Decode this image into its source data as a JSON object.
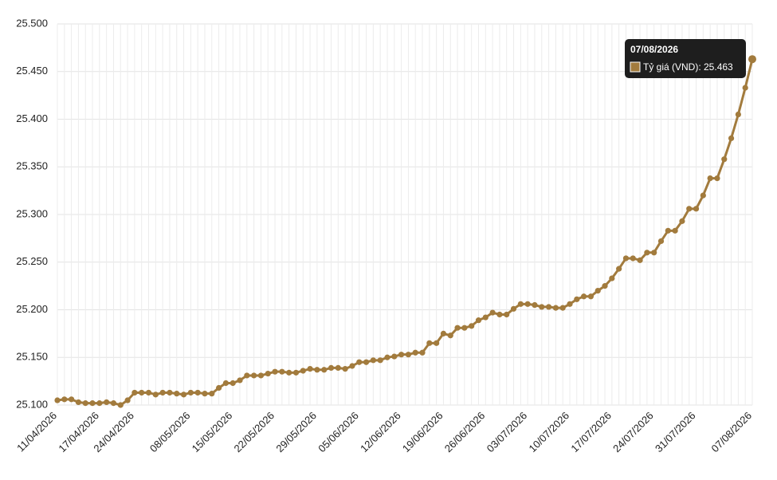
{
  "chart_data": {
    "type": "line",
    "categories": [
      "11/04/2026",
      null,
      null,
      null,
      null,
      null,
      "17/04/2026",
      null,
      null,
      null,
      null,
      "24/04/2026",
      null,
      null,
      null,
      null,
      null,
      null,
      null,
      "08/05/2026",
      null,
      null,
      null,
      null,
      null,
      "15/05/2026",
      null,
      null,
      null,
      null,
      null,
      "22/05/2026",
      null,
      null,
      null,
      null,
      null,
      "29/05/2026",
      null,
      null,
      null,
      null,
      null,
      "05/06/2026",
      null,
      null,
      null,
      null,
      null,
      "12/06/2026",
      null,
      null,
      null,
      null,
      null,
      "19/06/2026",
      null,
      null,
      null,
      null,
      null,
      "26/06/2026",
      null,
      null,
      null,
      null,
      null,
      "03/07/2026",
      null,
      null,
      null,
      null,
      null,
      "10/07/2026",
      null,
      null,
      null,
      null,
      null,
      "17/07/2026",
      null,
      null,
      null,
      null,
      null,
      "24/07/2026",
      null,
      null,
      null,
      null,
      null,
      "31/07/2026",
      null,
      null,
      null,
      null,
      null,
      null,
      null,
      "07/08/2026"
    ],
    "series": [
      {
        "name": "Tỷ giá (VND)",
        "color": "#a27b3d",
        "values": [
          25.105,
          25.106,
          25.106,
          25.103,
          25.102,
          25.102,
          25.102,
          25.103,
          25.102,
          25.1,
          25.105,
          25.113,
          25.113,
          25.113,
          25.111,
          25.113,
          25.113,
          25.112,
          25.111,
          25.113,
          25.113,
          25.112,
          25.112,
          25.118,
          25.123,
          25.123,
          25.126,
          25.131,
          25.131,
          25.131,
          25.133,
          25.135,
          25.135,
          25.134,
          25.134,
          25.136,
          25.138,
          25.137,
          25.137,
          25.139,
          25.139,
          25.138,
          25.141,
          25.145,
          25.145,
          25.147,
          25.147,
          25.15,
          25.151,
          25.153,
          25.153,
          25.155,
          25.155,
          25.165,
          25.165,
          25.175,
          25.173,
          25.181,
          25.181,
          25.183,
          25.189,
          25.192,
          25.197,
          25.195,
          25.195,
          25.201,
          25.206,
          25.206,
          25.205,
          25.203,
          25.203,
          25.202,
          25.202,
          25.206,
          25.211,
          25.214,
          25.214,
          25.22,
          25.225,
          25.233,
          25.243,
          25.254,
          25.254,
          25.252,
          25.26,
          25.26,
          25.272,
          25.283,
          25.283,
          25.293,
          25.306,
          25.306,
          25.32,
          25.338,
          25.338,
          25.358,
          25.38,
          25.405,
          25.433,
          25.463
        ]
      }
    ],
    "ylim": [
      25.1,
      25.5
    ],
    "yticks": [
      {
        "value": 25.1,
        "label": "25.100"
      },
      {
        "value": 25.15,
        "label": "25.150"
      },
      {
        "value": 25.2,
        "label": "25.200"
      },
      {
        "value": 25.25,
        "label": "25.250"
      },
      {
        "value": 25.3,
        "label": "25.300"
      },
      {
        "value": 25.35,
        "label": "25.350"
      },
      {
        "value": 25.4,
        "label": "25.400"
      },
      {
        "value": 25.45,
        "label": "25.450"
      },
      {
        "value": 25.5,
        "label": "25.500"
      }
    ],
    "grid": true,
    "tooltip": {
      "title": "07/08/2026",
      "label": "Tỷ giá (VND): 25.463"
    }
  }
}
